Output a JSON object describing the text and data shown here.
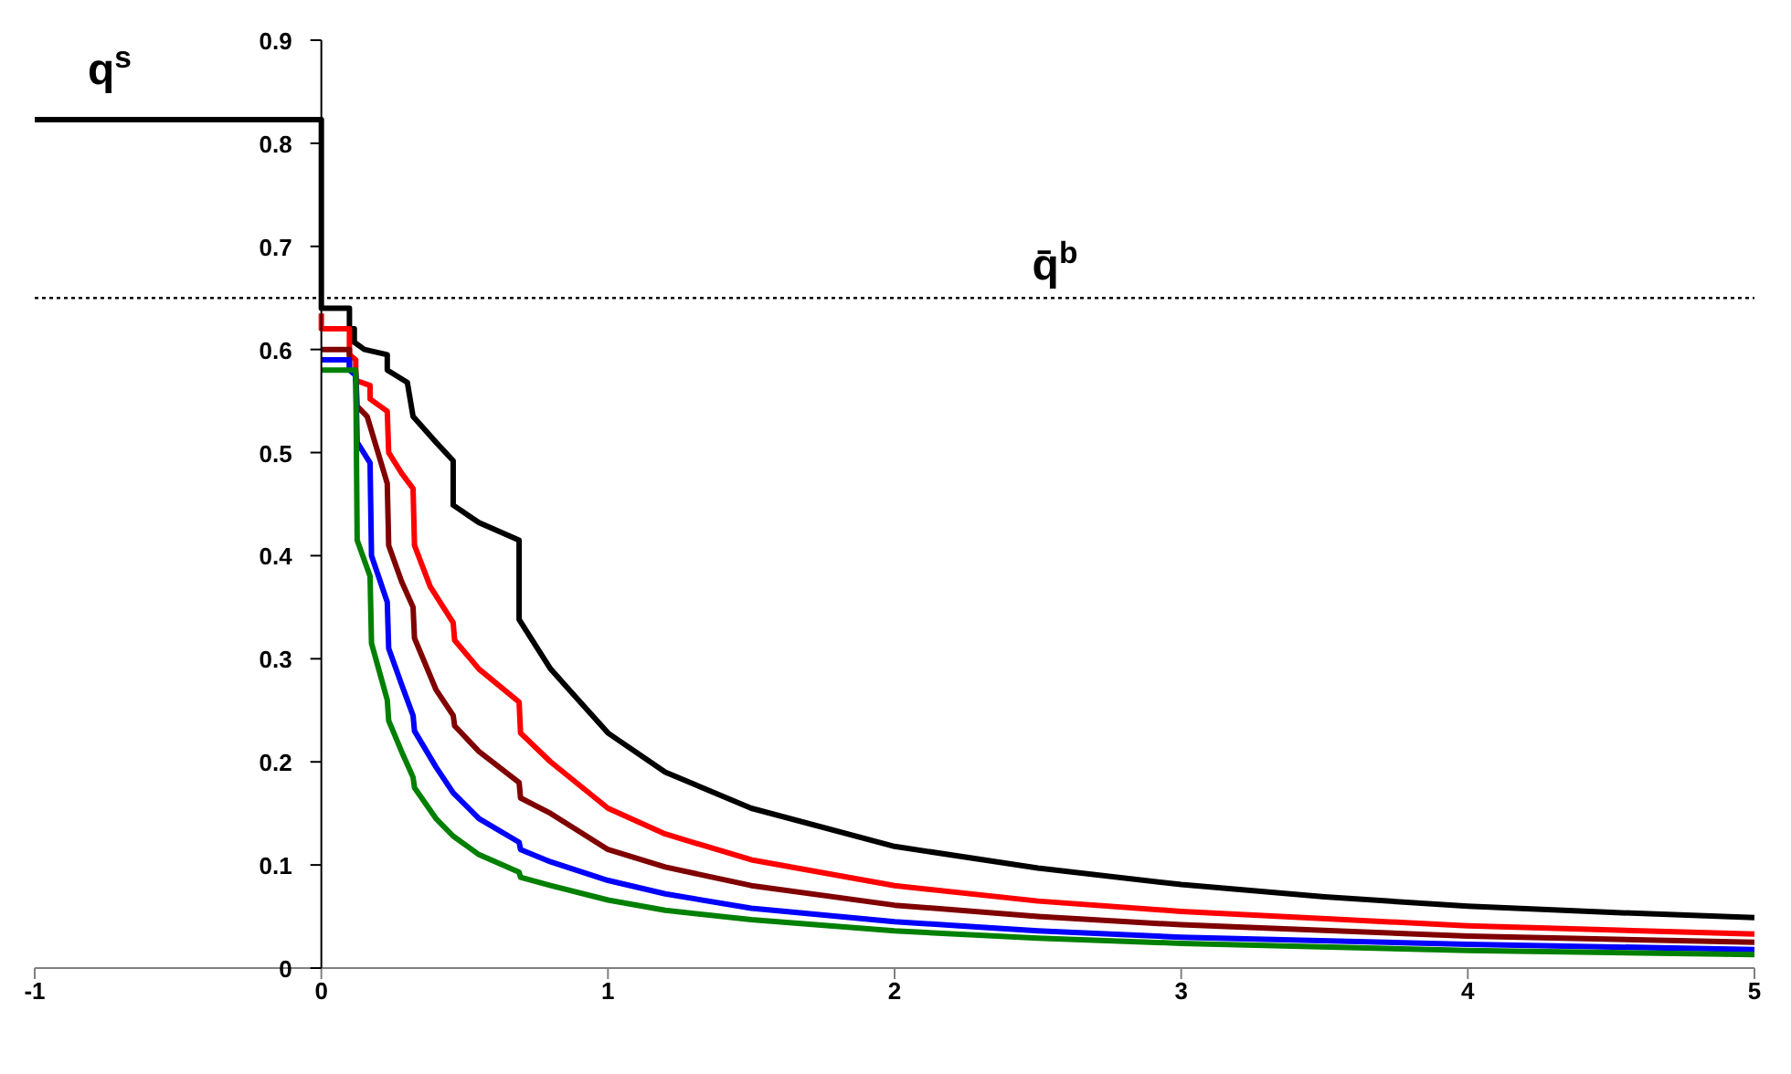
{
  "chart_data": {
    "type": "line",
    "marker": "none",
    "xlim": [
      -1,
      5
    ],
    "xticks": [
      -1,
      0,
      1,
      2,
      3,
      4,
      5
    ],
    "ylim": [
      0,
      0.9
    ],
    "yticks": [
      0,
      0.1,
      0.2,
      0.3,
      0.4,
      0.5,
      0.6,
      0.7,
      0.8,
      0.9
    ],
    "ref_lines": [
      {
        "axis": "y",
        "value": 0.65,
        "label": "q̄$^{b}$",
        "color": "#000000",
        "line_style": "dotted"
      }
    ],
    "annotations": [
      "q$^{s}$"
    ],
    "series": [
      {
        "color": "#000000",
        "x": [
          -1,
          0,
          0,
          0.098,
          0.098,
          0.115,
          0.115,
          0.15,
          0.23,
          0.23,
          0.3,
          0.32,
          0.4,
          0.46,
          0.46,
          0.55,
          0.69,
          0.69,
          0.8,
          1.0,
          1.2,
          1.5,
          2.0,
          2.5,
          3.0,
          3.5,
          4.0,
          4.5,
          5.0
        ],
        "values": [
          0.823,
          0.823,
          0.64,
          0.64,
          0.62,
          0.62,
          0.607,
          0.6,
          0.595,
          0.58,
          0.568,
          0.535,
          0.51,
          0.492,
          0.449,
          0.432,
          0.415,
          0.338,
          0.29,
          0.228,
          0.19,
          0.155,
          0.118,
          0.097,
          0.081,
          0.069,
          0.06,
          0.054,
          0.049
        ]
      },
      {
        "color": "#ff0000",
        "x": [
          0,
          0,
          0.098,
          0.098,
          0.12,
          0.12,
          0.17,
          0.17,
          0.23,
          0.235,
          0.28,
          0.32,
          0.325,
          0.38,
          0.46,
          0.465,
          0.55,
          0.69,
          0.695,
          0.8,
          1.0,
          1.2,
          1.5,
          2.0,
          2.5,
          3.0,
          4.0,
          5.0
        ],
        "values": [
          0.635,
          0.62,
          0.62,
          0.595,
          0.59,
          0.57,
          0.565,
          0.552,
          0.54,
          0.5,
          0.48,
          0.465,
          0.41,
          0.37,
          0.335,
          0.318,
          0.29,
          0.258,
          0.228,
          0.2,
          0.155,
          0.13,
          0.105,
          0.08,
          0.065,
          0.055,
          0.041,
          0.033
        ]
      },
      {
        "color": "#800000",
        "x": [
          0,
          0.098,
          0.098,
          0.12,
          0.125,
          0.16,
          0.23,
          0.235,
          0.28,
          0.32,
          0.325,
          0.4,
          0.46,
          0.465,
          0.55,
          0.69,
          0.695,
          0.8,
          1.0,
          1.2,
          1.5,
          2.0,
          2.5,
          3.0,
          4.0,
          5.0
        ],
        "values": [
          0.6,
          0.6,
          0.58,
          0.578,
          0.545,
          0.535,
          0.47,
          0.41,
          0.375,
          0.35,
          0.32,
          0.27,
          0.245,
          0.235,
          0.21,
          0.18,
          0.165,
          0.15,
          0.115,
          0.098,
          0.08,
          0.061,
          0.05,
          0.042,
          0.031,
          0.025
        ]
      },
      {
        "color": "#0000ff",
        "x": [
          0,
          0.098,
          0.098,
          0.12,
          0.125,
          0.17,
          0.175,
          0.23,
          0.235,
          0.28,
          0.32,
          0.325,
          0.4,
          0.46,
          0.55,
          0.69,
          0.695,
          0.8,
          1.0,
          1.2,
          1.5,
          2.0,
          2.5,
          3.0,
          4.0,
          5.0
        ],
        "values": [
          0.59,
          0.59,
          0.58,
          0.575,
          0.51,
          0.49,
          0.4,
          0.355,
          0.31,
          0.275,
          0.245,
          0.23,
          0.195,
          0.17,
          0.145,
          0.122,
          0.115,
          0.103,
          0.085,
          0.072,
          0.058,
          0.045,
          0.036,
          0.03,
          0.023,
          0.018
        ]
      },
      {
        "color": "#008000",
        "x": [
          0,
          0.12,
          0.125,
          0.17,
          0.175,
          0.23,
          0.235,
          0.28,
          0.32,
          0.325,
          0.4,
          0.46,
          0.55,
          0.69,
          0.695,
          0.8,
          1.0,
          1.2,
          1.5,
          2.0,
          2.5,
          3.0,
          4.0,
          5.0
        ],
        "values": [
          0.58,
          0.58,
          0.415,
          0.38,
          0.315,
          0.26,
          0.24,
          0.21,
          0.185,
          0.175,
          0.145,
          0.128,
          0.11,
          0.093,
          0.088,
          0.08,
          0.066,
          0.056,
          0.047,
          0.036,
          0.029,
          0.024,
          0.017,
          0.013
        ]
      }
    ]
  }
}
